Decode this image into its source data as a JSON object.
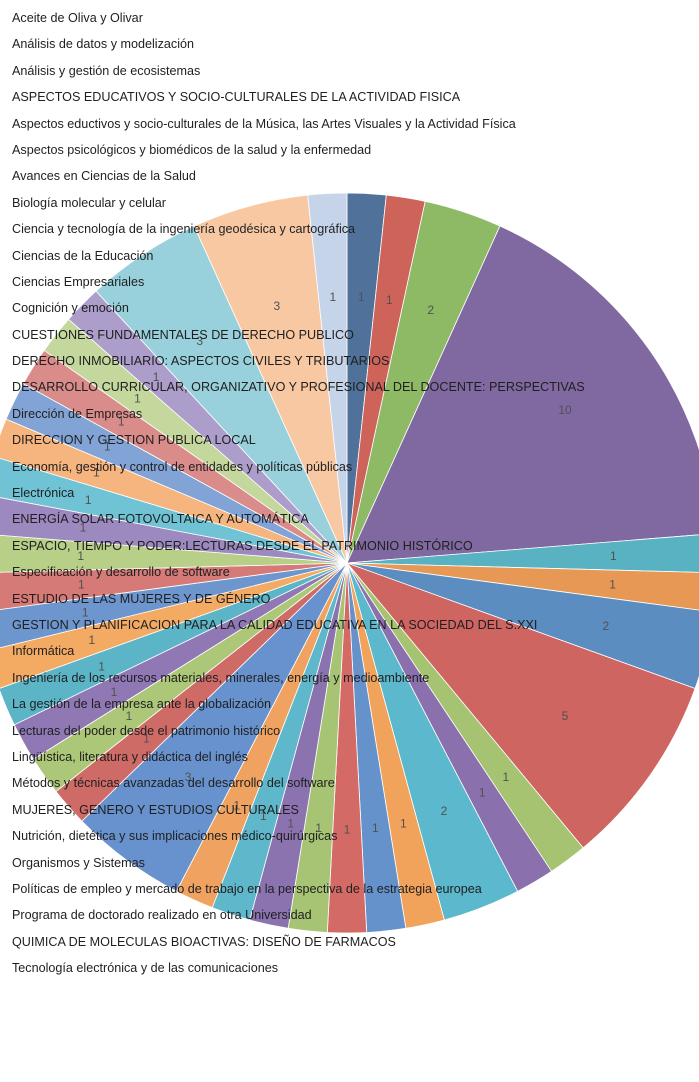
{
  "chart_data": {
    "type": "pie",
    "title": "",
    "legend_position": "left",
    "categories": [
      "Aceite de Oliva y Olivar",
      "Análisis de datos y modelización",
      "Análisis y gestión de ecosistemas",
      "ASPECTOS EDUCATIVOS Y SOCIO-CULTURALES DE LA ACTIVIDAD FISICA",
      "Aspectos eductivos y socio-culturales de la Música, las Artes Visuales y la Actividad Física",
      "Aspectos psicológicos y biomédicos de la salud y la enfermedad",
      "Avances en Ciencias de la Salud",
      "Biología molecular y celular",
      "Ciencia y tecnología de la ingeniería geodésica y cartográfica",
      "Ciencias de la Educación",
      "Ciencias Empresariales",
      "Cognición y emoción",
      "CUESTIONES FUNDAMENTALES DE DERECHO PUBLICO",
      "DERECHO INMOBILIARIO: ASPECTOS CIVILES Y TRIBUTARIOS",
      "DESARROLLO CURRICULAR, ORGANIZATIVO Y PROFESIONAL DEL DOCENTE: PERSPECTIVAS",
      "Dirección de Empresas",
      "DIRECCION Y GESTION PUBLICA LOCAL",
      "Economía, gestión y control de entidades y políticas públicas",
      "Electrónica",
      "ENERGÍA SOLAR FOTOVOLTAICA Y AUTOMÁTICA",
      "ESPACIO, TIEMPO Y PODER:LECTURAS DESDE EL PATRIMONIO HISTÓRICO",
      "Especificación y desarrollo de software",
      "ESTUDIO DE LAS MUJERES Y DE GÉNERO",
      "GESTION Y PLANIFICACION PARA LA CALIDAD EDUCATIVA EN LA SOCIEDAD DEL S.XXI",
      "Informática",
      "Ingeniería de los recursos materiales, minerales, energía y medioambiente",
      "La gestión de la empresa ante la globalización",
      "Lecturas del poder desde el patrimonio histórico",
      "Lingüística, literatura y didáctica del inglés",
      "Métodos y técnicas avanzadas del desarrollo del software",
      "MUJERES, GENERO Y ESTUDIOS CULTURALES",
      "Nutrición, dietética y sus implicaciones médico-quirúrgicas",
      "Organismos y Sistemas",
      "Políticas de empleo y mercado de trabajo en la perspectiva de la estrategia europea",
      "Programa de doctorado realizado en otra Universidad",
      "QUIMICA DE MOLECULAS BIOACTIVAS: DISEÑO DE FARMACOS",
      "Tecnología electrónica y de las comunicaciones"
    ],
    "slices": [
      {
        "value": 1,
        "color": "#1F497D"
      },
      {
        "value": 1,
        "color": "#C0392B"
      },
      {
        "value": 2,
        "color": "#6FA63A"
      },
      {
        "value": 10,
        "color": "#5B3F86"
      },
      {
        "value": 1,
        "color": "#2A9DB0"
      },
      {
        "value": 1,
        "color": "#E07B24"
      },
      {
        "value": 2,
        "color": "#2E6DB0"
      },
      {
        "value": 5,
        "color": "#C03A35"
      },
      {
        "value": 1,
        "color": "#8DB34A"
      },
      {
        "value": 1,
        "color": "#6A4A96"
      },
      {
        "value": 2,
        "color": "#2FA5BE"
      },
      {
        "value": 1,
        "color": "#EE8A2E"
      },
      {
        "value": 1,
        "color": "#3B74BD"
      },
      {
        "value": 1,
        "color": "#C8403B"
      },
      {
        "value": 1,
        "color": "#8FB44F"
      },
      {
        "value": 1,
        "color": "#6B4C9A"
      },
      {
        "value": 1,
        "color": "#31A3BC"
      },
      {
        "value": 1,
        "color": "#EC8A34"
      },
      {
        "value": 3,
        "color": "#3E74BF"
      },
      {
        "value": 1,
        "color": "#C2423D"
      },
      {
        "value": 1,
        "color": "#96B853"
      },
      {
        "value": 1,
        "color": "#7152A0"
      },
      {
        "value": 1,
        "color": "#2FA0B8"
      },
      {
        "value": 1,
        "color": "#F09238"
      },
      {
        "value": 1,
        "color": "#4579C1"
      },
      {
        "value": 1,
        "color": "#C95550"
      },
      {
        "value": 1,
        "color": "#A3C266"
      },
      {
        "value": 1,
        "color": "#8068AE"
      },
      {
        "value": 1,
        "color": "#47B2C8"
      },
      {
        "value": 1,
        "color": "#F4A05A"
      },
      {
        "value": 1,
        "color": "#5F8ACB"
      },
      {
        "value": 1,
        "color": "#CF6C68"
      },
      {
        "value": 1,
        "color": "#B4CC82"
      },
      {
        "value": 1,
        "color": "#9582BB"
      },
      {
        "value": 3,
        "color": "#7CC3D3"
      },
      {
        "value": 3,
        "color": "#F6B98A"
      },
      {
        "value": 1,
        "color": "#B7C8E4"
      }
    ]
  }
}
